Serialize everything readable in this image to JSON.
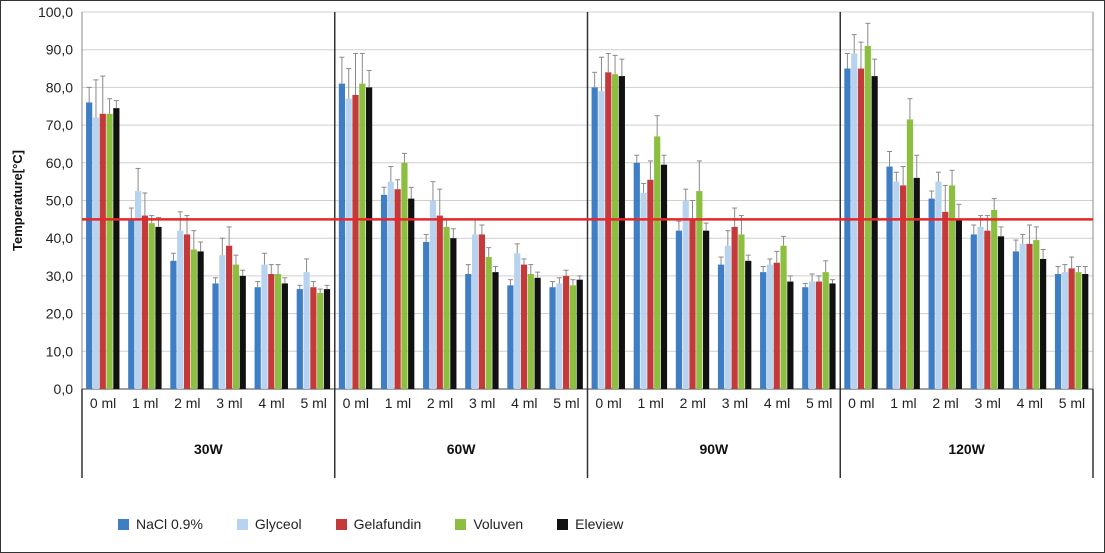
{
  "chart_data": {
    "type": "bar",
    "ylabel": "Temperature[°C]",
    "ylim": [
      0,
      100
    ],
    "ytick_step": 10,
    "ytick_labels": [
      "0,0",
      "10,0",
      "20,0",
      "30,0",
      "40,0",
      "50,0",
      "60,0",
      "70,0",
      "80,0",
      "90,0",
      "100,0"
    ],
    "grid": true,
    "legend_position": "bottom",
    "groups": [
      "30W",
      "60W",
      "90W",
      "120W"
    ],
    "categories": [
      "0 ml",
      "1 ml",
      "2 ml",
      "3 ml",
      "4 ml",
      "5 ml"
    ],
    "threshold": {
      "value": 45,
      "color": "#e8262a"
    },
    "series": [
      {
        "name": "NaCl 0.9%",
        "color": "#3f7ec5",
        "values": [
          [
            76,
            45,
            34,
            28,
            27,
            26.5
          ],
          [
            81,
            51.5,
            39,
            30.5,
            27.5,
            27
          ],
          [
            80,
            60,
            42,
            33,
            31,
            27
          ],
          [
            85,
            59,
            50.5,
            41,
            36.5,
            30.5
          ]
        ],
        "errors": [
          [
            4,
            3,
            2,
            1.5,
            1.5,
            1
          ],
          [
            7,
            2,
            2,
            2.5,
            1.5,
            1.5
          ],
          [
            4,
            2,
            2.5,
            2,
            1.5,
            1
          ],
          [
            4,
            4,
            2,
            2.5,
            3,
            2
          ]
        ]
      },
      {
        "name": "Glyceol",
        "color": "#b8d3ef",
        "values": [
          [
            72,
            52.5,
            42,
            35.5,
            33,
            31
          ],
          [
            77,
            55,
            50,
            41,
            36,
            28
          ],
          [
            79,
            52,
            50,
            38,
            33,
            28.5
          ],
          [
            89,
            55,
            55,
            43,
            38.5,
            31
          ]
        ],
        "errors": [
          [
            10,
            6,
            5,
            4.5,
            3,
            3.5
          ],
          [
            8,
            4,
            5,
            4,
            2.5,
            1.5
          ],
          [
            9,
            2.5,
            3,
            4,
            1.5,
            2
          ],
          [
            5,
            2.5,
            2.5,
            3,
            2.5,
            2
          ]
        ]
      },
      {
        "name": "Gelafundin",
        "color": "#c43a3a",
        "values": [
          [
            73,
            46,
            41,
            38,
            30.5,
            27
          ],
          [
            78,
            53,
            46,
            41,
            33,
            30
          ],
          [
            84,
            55.5,
            45,
            43,
            33.5,
            28.5
          ],
          [
            85,
            54,
            47,
            42,
            38.5,
            32
          ]
        ],
        "errors": [
          [
            10,
            6,
            5,
            5,
            2.5,
            1.5
          ],
          [
            11,
            2.5,
            7,
            2.5,
            1.5,
            1.5
          ],
          [
            5,
            5,
            5,
            5,
            3,
            1.5
          ],
          [
            7,
            5,
            7,
            4,
            5,
            3
          ]
        ]
      },
      {
        "name": "Voluven",
        "color": "#8cbf3f",
        "values": [
          [
            73,
            44,
            37,
            33,
            30.5,
            25.5
          ],
          [
            81,
            60,
            43,
            35,
            30.5,
            27.5
          ],
          [
            83.5,
            67,
            52.5,
            41,
            38,
            31
          ],
          [
            91,
            71.5,
            54,
            47.5,
            39.5,
            31
          ]
        ],
        "errors": [
          [
            4,
            2,
            5,
            2.5,
            2.5,
            1
          ],
          [
            8,
            2.5,
            2,
            2.5,
            2.5,
            1.5
          ],
          [
            5,
            5.5,
            8,
            5,
            2.5,
            3
          ],
          [
            6,
            5.5,
            4,
            3,
            3.5,
            1.5
          ]
        ]
      },
      {
        "name": "Eleview",
        "color": "#111111",
        "values": [
          [
            74.5,
            43,
            36.5,
            30,
            28,
            26.5
          ],
          [
            80,
            50.5,
            40,
            31,
            29.5,
            29
          ],
          [
            83,
            59.5,
            42,
            34,
            28.5,
            28
          ],
          [
            83,
            56,
            45,
            40.5,
            34.5,
            30.5
          ]
        ],
        "errors": [
          [
            2,
            2.5,
            2.5,
            1.5,
            1.5,
            1
          ],
          [
            4.5,
            3,
            2.5,
            1.5,
            1.5,
            1
          ],
          [
            4.5,
            2.5,
            2,
            1.5,
            1.5,
            1
          ],
          [
            4.5,
            6,
            4,
            2.5,
            2.5,
            2
          ]
        ]
      }
    ]
  }
}
